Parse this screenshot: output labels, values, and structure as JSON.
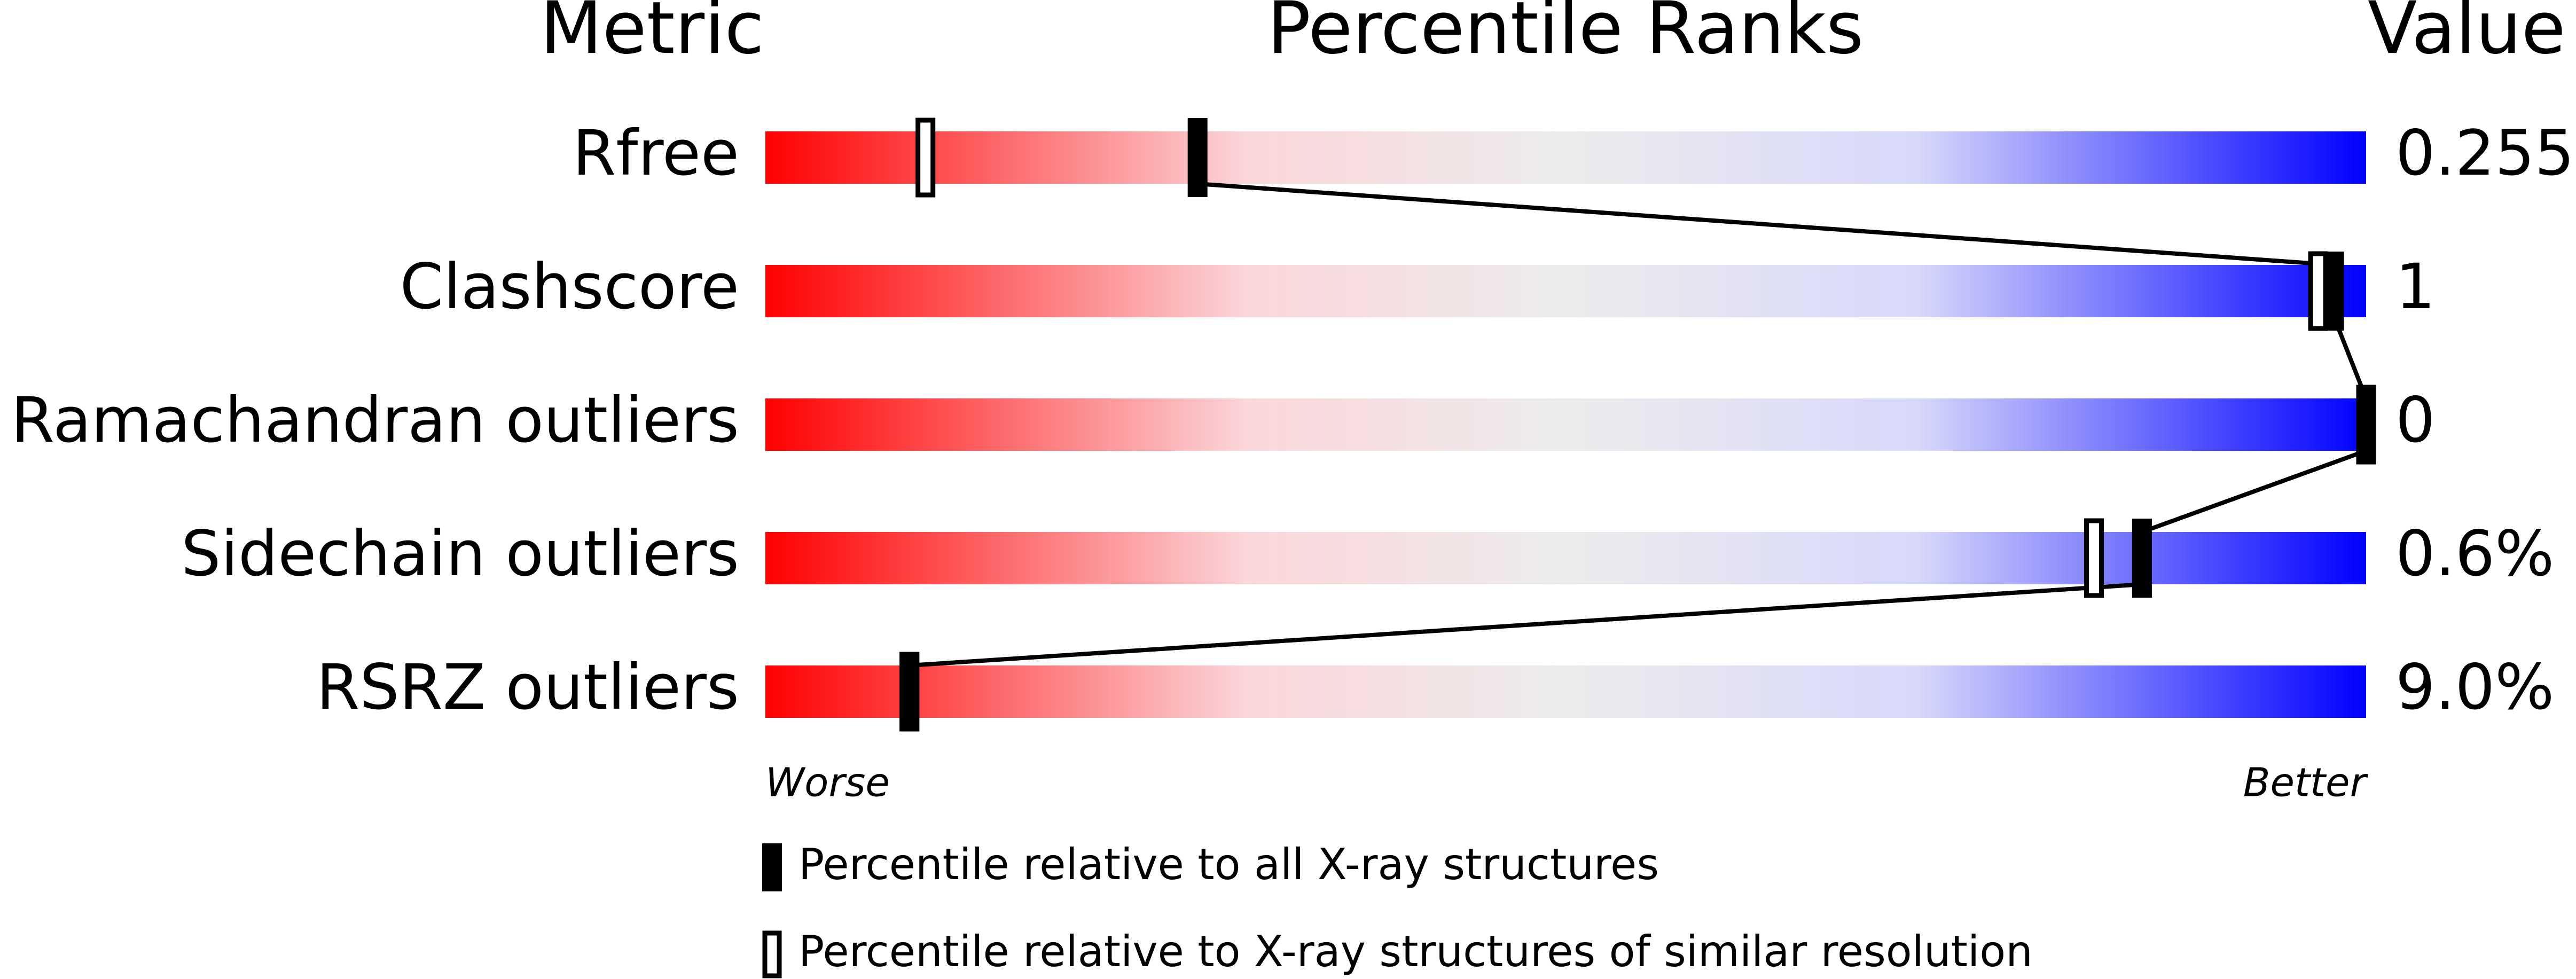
{
  "chart_data": {
    "type": "percentile-slider",
    "headers": {
      "metric": "Metric",
      "ranks": "Percentile Ranks",
      "value": "Value"
    },
    "categories": [
      "Rfree",
      "Clashscore",
      "Ramachandran outliers",
      "Sidechain outliers",
      "RSRZ outliers"
    ],
    "metric_values": [
      "0.255",
      "1",
      "0",
      "0.6%",
      "9.0%"
    ],
    "series": [
      {
        "name": "Percentile relative to all X-ray structures",
        "color": "#000000",
        "values": [
          27,
          98,
          100,
          86,
          9
        ]
      },
      {
        "name": "Percentile relative to X-ray structures of similar resolution",
        "color": "#000000",
        "values": [
          10,
          97,
          100,
          83,
          9
        ]
      }
    ],
    "xlim": [
      0,
      100
    ],
    "worse_label": "Worse",
    "better_label": "Better"
  }
}
